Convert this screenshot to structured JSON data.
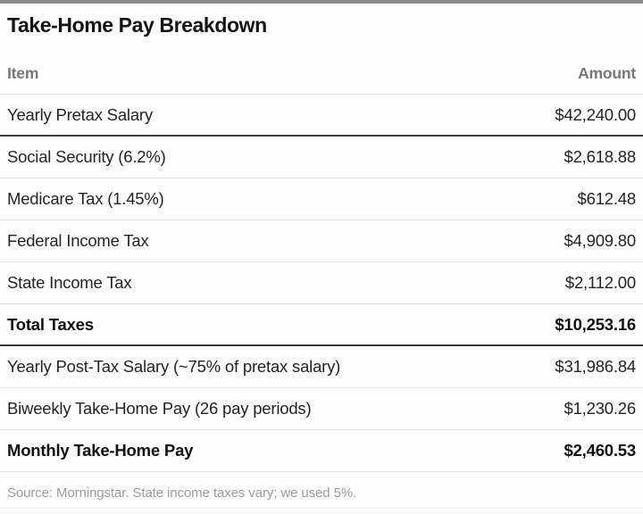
{
  "colors": {
    "topbar": "#8a8a8a",
    "rule_heavy": "#383838",
    "rule_light": "#e6e6e6",
    "header_text": "#787878",
    "body_text": "#242424",
    "bold_text": "#101010",
    "source_text": "#9b9b9b"
  },
  "chart_data": {
    "type": "table",
    "title": "Take-Home Pay Breakdown",
    "columns": [
      "Item",
      "Amount"
    ],
    "rows": [
      {
        "item": "Yearly Pretax Salary",
        "amount": "$42,240.00",
        "amount_value": 42240.0,
        "emphasis": "normal",
        "rule_after": "heavy"
      },
      {
        "item": "Social Security (6.2%)",
        "amount": "$2,618.88",
        "amount_value": 2618.88,
        "emphasis": "normal",
        "rule_after": "light"
      },
      {
        "item": "Medicare Tax (1.45%)",
        "amount": "$612.48",
        "amount_value": 612.48,
        "emphasis": "normal",
        "rule_after": "light"
      },
      {
        "item": "Federal Income Tax",
        "amount": "$4,909.80",
        "amount_value": 4909.8,
        "emphasis": "normal",
        "rule_after": "light"
      },
      {
        "item": "State Income Tax",
        "amount": "$2,112.00",
        "amount_value": 2112.0,
        "emphasis": "normal",
        "rule_after": "light"
      },
      {
        "item": "Total Taxes",
        "amount": "$10,253.16",
        "amount_value": 10253.16,
        "emphasis": "bold",
        "rule_after": "heavy"
      },
      {
        "item": "Yearly Post-Tax Salary (~75% of pretax salary)",
        "amount": "$31,986.84",
        "amount_value": 31986.84,
        "emphasis": "normal",
        "rule_after": "light"
      },
      {
        "item": "Biweekly Take-Home Pay (26 pay periods)",
        "amount": "$1,230.26",
        "amount_value": 1230.26,
        "emphasis": "normal",
        "rule_after": "light"
      },
      {
        "item": "Monthly Take-Home Pay",
        "amount": "$2,460.53",
        "amount_value": 2460.53,
        "emphasis": "bold",
        "rule_after": "light"
      }
    ],
    "source": "Source: Morningstar. State income taxes vary; we used 5%."
  }
}
